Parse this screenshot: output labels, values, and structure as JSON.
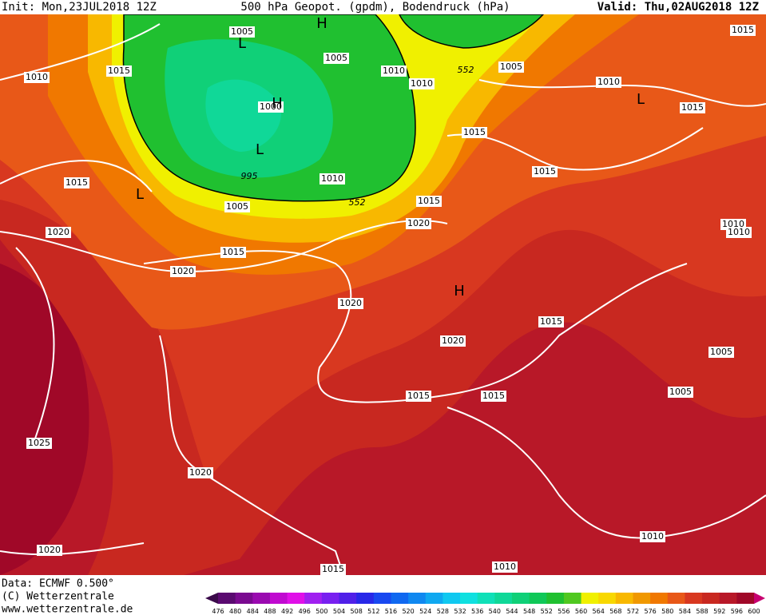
{
  "header": {
    "init": "Init: Mon,23JUL2018 12Z",
    "title": "500 hPa Geopot. (gpdm), Bodendruck (hPa)",
    "valid": "Valid: Thu,02AUG2018 12Z"
  },
  "footer": {
    "data": "Data: ECMWF   0.500°",
    "copyright": "(C) Wetterzentrale",
    "url": "www.wetterzentrale.de"
  },
  "isobar_labels": [
    1005,
    1015,
    1010,
    1005,
    1010,
    1010,
    552,
    1005,
    1010,
    1015,
    1015,
    1015,
    1015,
    1010,
    995,
    1005,
    552,
    1015,
    1015,
    1020,
    1020,
    1015,
    1020,
    1020,
    1010,
    1010,
    1015,
    1020,
    1005,
    1005,
    1015,
    1015,
    1025,
    1020,
    1010,
    1020,
    1015,
    1010,
    1000
  ],
  "pressure_centers": [
    "L",
    "H",
    "H",
    "L",
    "L",
    "L",
    "H"
  ],
  "colorbar": {
    "labels": [
      476,
      480,
      484,
      488,
      492,
      496,
      500,
      504,
      508,
      512,
      516,
      520,
      524,
      528,
      532,
      536,
      540,
      544,
      548,
      552,
      556,
      560,
      564,
      568,
      572,
      576,
      580,
      584,
      588,
      592,
      596,
      600
    ],
    "colors": [
      "#3a0a4a",
      "#5a0a70",
      "#7a0a90",
      "#9a0ab0",
      "#c00ad0",
      "#e010e8",
      "#a020f0",
      "#7820f0",
      "#5020e8",
      "#2828e8",
      "#1848f0",
      "#1068f0",
      "#1088f0",
      "#10a8f0",
      "#10c8f0",
      "#10e0e0",
      "#10e0b8",
      "#10d898",
      "#10d078",
      "#10c858",
      "#20c030",
      "#50c820",
      "#f0f000",
      "#f8d800",
      "#f8b800",
      "#f09800",
      "#f07800",
      "#e85818",
      "#d83820",
      "#c82820",
      "#b81828",
      "#a00828",
      "#c80070"
    ]
  }
}
